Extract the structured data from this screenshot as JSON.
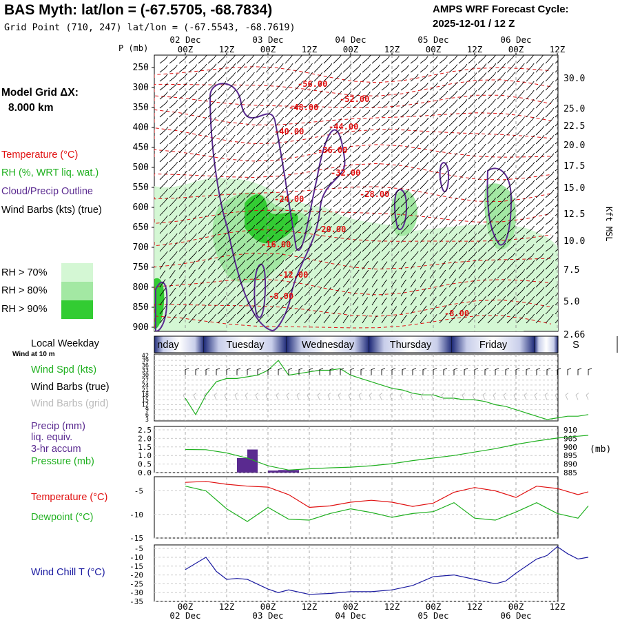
{
  "header": {
    "title": "BAS Myth:  lat/lon = (-67.5705, -68.7834)",
    "subtitle": "Grid Point (710, 247) lat/lon = (-67.5543, -68.7619)",
    "forecast_label": "AMPS WRF Forecast Cycle:",
    "forecast_cycle": "2025-12-01 / 12  Z"
  },
  "time_axis": {
    "top_dates": [
      "02 Dec",
      "03 Dec",
      "04 Dec",
      "05 Dec",
      "06 Dec"
    ],
    "hour_labels": [
      "00Z",
      "12Z",
      "00Z",
      "12Z",
      "00Z",
      "12Z",
      "00Z",
      "12Z",
      "00Z",
      "12Z"
    ],
    "bottom_dates": [
      "02 Dec",
      "03 Dec",
      "04 Dec",
      "05 Dec",
      "06 Dec"
    ]
  },
  "model_grid": {
    "title": "Model Grid ΔX:",
    "value": "8.000 km"
  },
  "legend": {
    "temperature": "Temperature (°C)",
    "rh": "RH (%, WRT liq. wat.)",
    "cloud": "Cloud/Precip Outline",
    "wind": "Wind Barbs (kts) (true)",
    "rh_levels": [
      "RH > 70%",
      "RH > 80%",
      "RH > 90%"
    ],
    "rh_colors": [
      "#d4f7d4",
      "#a3e8a3",
      "#33cc33"
    ]
  },
  "colors": {
    "temperature": "#e01010",
    "rh_green": "#20b020",
    "cloud": "#5a2a90",
    "wind_chill": "#1a1aa0",
    "weekday_bar": "#1e2a78",
    "pressure": "#20b020",
    "precip": "#5a2a90"
  },
  "weekday_panel": {
    "title": "Local Weekday",
    "days": [
      "nday",
      "Tuesday",
      "Wednesday",
      "Thursday",
      "Friday",
      "S"
    ]
  },
  "wind_panel": {
    "note": "Wind at 10 m",
    "labels": [
      "Wind Spd (kts)",
      "Wind Barbs (true)",
      "Wind Barbs (grid)"
    ],
    "ticks": [
      "42",
      "39",
      "36",
      "33",
      "30",
      "27",
      "24",
      "21",
      "18",
      "15",
      "12",
      "9",
      "6",
      "3"
    ]
  },
  "precip_panel": {
    "labels": [
      "Precip (mm)",
      "liq. equiv.",
      "3-hr accum",
      "Pressure (mb)"
    ],
    "left_ticks": [
      "2.5",
      "2.0",
      "1.5",
      "1.0",
      "0.5",
      "0.0"
    ],
    "right_ticks": [
      "910",
      "905",
      "900",
      "895",
      "890",
      "885"
    ],
    "right_unit": "(mb)"
  },
  "temp_panel": {
    "labels": [
      "Temperature (°C)",
      "Dewpoint (°C)"
    ],
    "ticks": [
      "-5",
      "-10",
      "-15"
    ]
  },
  "chill_panel": {
    "label": "Wind Chill T (°C)",
    "ticks": [
      "-5",
      "-10",
      "-15",
      "-20",
      "-25",
      "-30",
      "-35"
    ]
  },
  "chart_data": [
    {
      "type": "heatmap",
      "ylabel": "P (mb)",
      "y_right_label": "Kft MSL",
      "p_ticks": [
        "250",
        "300",
        "350",
        "400",
        "450",
        "500",
        "550",
        "600",
        "650",
        "700",
        "750",
        "800",
        "850",
        "900"
      ],
      "kft_ticks": [
        "30.0",
        "25.0",
        "22.5",
        "20.0",
        "17.5",
        "15.0",
        "12.5",
        "10.0",
        "7.5",
        "5.0",
        "2.66"
      ],
      "kft_values": [
        30.0,
        25.0,
        22.5,
        20.0,
        17.5,
        15.0,
        12.5,
        10.0,
        7.5,
        5.0,
        2.66
      ],
      "isotherm_labels": [
        "-56.00",
        "-52.00",
        "-48.00",
        "-44.00",
        "-40.00",
        "-36.00",
        "-32.00",
        "-28.00",
        "-24.00",
        "-20.00",
        "-16.00",
        "-12.00",
        "-8.00",
        "-8.00"
      ],
      "p_range": [
        250,
        900
      ]
    },
    {
      "type": "line",
      "title": "Wind Spd (kts)",
      "hours": [
        0,
        3,
        6,
        9,
        12,
        15,
        18,
        21,
        24,
        27,
        30,
        33,
        36,
        39,
        42,
        45,
        48,
        51,
        54,
        57,
        60,
        63,
        66,
        69,
        72,
        75,
        78,
        81,
        84,
        87,
        90,
        93,
        96,
        99,
        102,
        105,
        108,
        111,
        114,
        117
      ],
      "wind_speed": [
        16,
        6,
        18,
        26,
        28,
        28,
        29,
        30,
        33,
        39,
        30,
        31,
        32,
        33,
        33,
        34,
        30,
        28,
        26,
        24,
        22,
        21,
        19,
        18,
        18,
        16,
        16,
        15,
        15,
        14,
        12,
        11,
        9,
        7,
        5,
        3,
        4,
        5,
        5,
        6
      ],
      "ylim": [
        3,
        42
      ]
    },
    {
      "type": "bar",
      "title": "Precip (mm) / Pressure (mb)",
      "precip_hours": [
        15,
        18,
        24,
        27,
        30
      ],
      "precip_values": [
        0.85,
        1.35,
        0.12,
        0.15,
        0.15
      ],
      "pressure_hours": [
        0,
        6,
        12,
        18,
        24,
        30,
        36,
        42,
        48,
        54,
        60,
        66,
        72,
        78,
        84,
        90,
        96,
        102,
        108,
        114,
        117
      ],
      "pressure": [
        898.5,
        898.4,
        896.5,
        893.5,
        889.0,
        886.5,
        887.2,
        887.8,
        888.2,
        889.0,
        890.2,
        892.0,
        893.5,
        895.0,
        897.0,
        899.0,
        901.5,
        903.5,
        905.2,
        906.3,
        906.8
      ],
      "ylim_precip": [
        0,
        2.5
      ],
      "ylim_pressure": [
        885,
        910
      ]
    },
    {
      "type": "line",
      "title": "Temperature / Dewpoint (°C)",
      "hours": [
        0,
        6,
        12,
        18,
        24,
        30,
        36,
        42,
        48,
        54,
        60,
        66,
        72,
        78,
        84,
        90,
        96,
        102,
        108,
        114,
        117
      ],
      "temperature": [
        -3.2,
        -3.0,
        -3.6,
        -4.0,
        -4.2,
        -5.8,
        -8.5,
        -8.2,
        -7.4,
        -7.0,
        -7.4,
        -8.3,
        -7.6,
        -5.3,
        -4.3,
        -5.0,
        -6.4,
        -4.0,
        -4.5,
        -5.8,
        -5.2
      ],
      "dewpoint": [
        -4.0,
        -5.0,
        -8.8,
        -11.5,
        -8.5,
        -11.0,
        -11.2,
        -9.8,
        -8.8,
        -9.6,
        -10.6,
        -9.8,
        -9.4,
        -7.5,
        -10.8,
        -11.2,
        -9.5,
        -7.5,
        -9.8,
        -10.8,
        -8.2
      ],
      "ylim": [
        -15,
        -2
      ]
    },
    {
      "type": "line",
      "title": "Wind Chill T (°C)",
      "hours": [
        0,
        6,
        9,
        12,
        15,
        18,
        24,
        27,
        30,
        36,
        42,
        48,
        54,
        60,
        66,
        72,
        78,
        84,
        90,
        93,
        96,
        102,
        105,
        108,
        111,
        114,
        117
      ],
      "wind_chill": [
        -17,
        -10,
        -18,
        -22.5,
        -22,
        -22.5,
        -28,
        -30,
        -28.5,
        -31,
        -30.5,
        -29.5,
        -29.5,
        -28.5,
        -26,
        -21,
        -20,
        -22.5,
        -25,
        -23.5,
        -19,
        -11,
        -9,
        -4,
        -8,
        -11,
        -10
      ],
      "ylim": [
        -35,
        -3
      ]
    }
  ]
}
